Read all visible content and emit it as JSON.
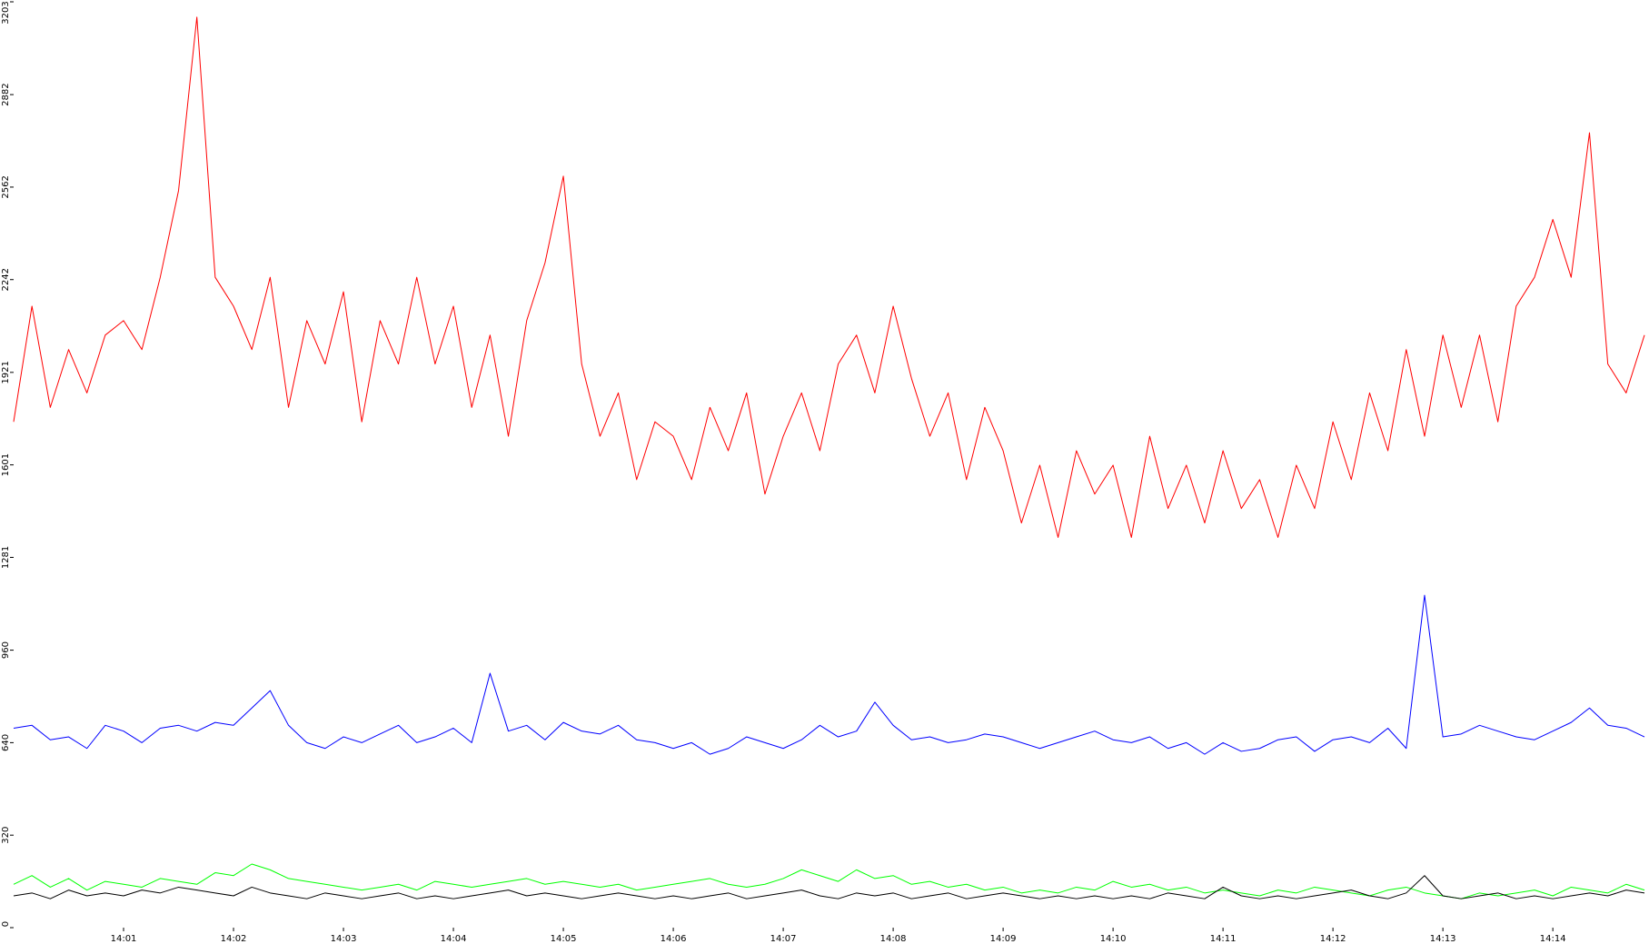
{
  "chart_data": {
    "type": "line",
    "categories": [
      null,
      null,
      null,
      null,
      null,
      null,
      "14:01",
      null,
      null,
      null,
      null,
      null,
      "14:02",
      null,
      null,
      null,
      null,
      null,
      "14:03",
      null,
      null,
      null,
      null,
      null,
      "14:04",
      null,
      null,
      null,
      null,
      null,
      "14:05",
      null,
      null,
      null,
      null,
      null,
      "14:06",
      null,
      null,
      null,
      null,
      null,
      "14:07",
      null,
      null,
      null,
      null,
      null,
      "14:08",
      null,
      null,
      null,
      null,
      null,
      "14:09",
      null,
      null,
      null,
      null,
      null,
      "14:10",
      null,
      null,
      null,
      null,
      null,
      "14:11",
      null,
      null,
      null,
      null,
      null,
      "14:12",
      null,
      null,
      null,
      null,
      null,
      "14:13",
      null,
      null,
      null,
      null,
      null,
      "14:14",
      null,
      null,
      null,
      null,
      null
    ],
    "ylim": [
      0,
      3203
    ],
    "yticks": [
      0,
      320,
      640,
      960,
      1281,
      1601,
      1921,
      2242,
      2562,
      2882,
      3203
    ],
    "series": [
      {
        "color": "#ff0000",
        "values": [
          1750,
          2150,
          1800,
          2000,
          1850,
          2050,
          2100,
          2000,
          2250,
          2550,
          3150,
          2250,
          2150,
          2000,
          2250,
          1800,
          2100,
          1950,
          2200,
          1750,
          2100,
          1950,
          2250,
          1950,
          2150,
          1800,
          2050,
          1700,
          2100,
          2300,
          2600,
          1950,
          1700,
          1850,
          1550,
          1750,
          1700,
          1550,
          1800,
          1650,
          1850,
          1500,
          1700,
          1850,
          1650,
          1950,
          2050,
          1850,
          2150,
          1900,
          1700,
          1850,
          1550,
          1800,
          1650,
          1400,
          1600,
          1350,
          1650,
          1500,
          1600,
          1350,
          1700,
          1450,
          1600,
          1400,
          1650,
          1450,
          1550,
          1350,
          1600,
          1450,
          1750,
          1550,
          1850,
          1650,
          2000,
          1700,
          2050,
          1800,
          2050,
          1750,
          2150,
          2250,
          2450,
          2250,
          2750,
          1950,
          1850,
          2050
        ]
      },
      {
        "color": "#0000ff",
        "values": [
          690,
          700,
          650,
          660,
          620,
          700,
          680,
          640,
          690,
          700,
          680,
          710,
          700,
          760,
          820,
          700,
          640,
          620,
          660,
          640,
          670,
          700,
          640,
          660,
          690,
          640,
          880,
          680,
          700,
          650,
          710,
          680,
          670,
          700,
          650,
          640,
          620,
          640,
          600,
          620,
          660,
          640,
          620,
          650,
          700,
          660,
          680,
          780,
          700,
          650,
          660,
          640,
          650,
          670,
          660,
          640,
          620,
          640,
          660,
          680,
          650,
          640,
          660,
          620,
          640,
          600,
          640,
          610,
          620,
          650,
          660,
          610,
          650,
          660,
          640,
          690,
          620,
          1150,
          660,
          670,
          700,
          680,
          660,
          650,
          680,
          710,
          760,
          700,
          690,
          660
        ]
      },
      {
        "color": "#00ff00",
        "values": [
          150,
          180,
          140,
          170,
          130,
          160,
          150,
          140,
          170,
          160,
          150,
          190,
          180,
          220,
          200,
          170,
          160,
          150,
          140,
          130,
          140,
          150,
          130,
          160,
          150,
          140,
          150,
          160,
          170,
          150,
          160,
          150,
          140,
          150,
          130,
          140,
          150,
          160,
          170,
          150,
          140,
          150,
          170,
          200,
          180,
          160,
          200,
          170,
          180,
          150,
          160,
          140,
          150,
          130,
          140,
          120,
          130,
          120,
          140,
          130,
          160,
          140,
          150,
          130,
          140,
          120,
          130,
          120,
          110,
          130,
          120,
          140,
          130,
          120,
          110,
          130,
          140,
          120,
          110,
          100,
          120,
          110,
          120,
          130,
          110,
          140,
          130,
          120,
          150,
          130
        ]
      },
      {
        "color": "#000000",
        "values": [
          110,
          120,
          100,
          130,
          110,
          120,
          110,
          130,
          120,
          140,
          130,
          120,
          110,
          140,
          120,
          110,
          100,
          120,
          110,
          100,
          110,
          120,
          100,
          110,
          100,
          110,
          120,
          130,
          110,
          120,
          110,
          100,
          110,
          120,
          110,
          100,
          110,
          100,
          110,
          120,
          100,
          110,
          120,
          130,
          110,
          100,
          120,
          110,
          120,
          100,
          110,
          120,
          100,
          110,
          120,
          110,
          100,
          110,
          100,
          110,
          100,
          110,
          100,
          120,
          110,
          100,
          140,
          110,
          100,
          110,
          100,
          110,
          120,
          130,
          110,
          100,
          120,
          180,
          110,
          100,
          110,
          120,
          100,
          110,
          100,
          110,
          120,
          110,
          130,
          120
        ]
      }
    ]
  }
}
